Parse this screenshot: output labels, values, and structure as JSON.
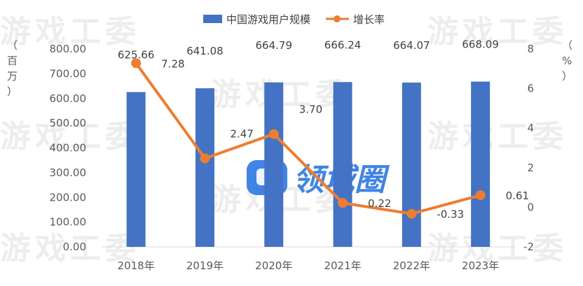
{
  "chart_data": {
    "type": "bar",
    "categories": [
      "2018年",
      "2019年",
      "2020年",
      "2021年",
      "2022年",
      "2023年"
    ],
    "series": [
      {
        "name": "中国游戏用户规模",
        "type": "bar",
        "axis": "left",
        "values": [
          625.66,
          641.08,
          664.79,
          666.24,
          664.07,
          668.09
        ],
        "color": "#4472c4",
        "labels": [
          "625.66",
          "641.08",
          "664.79",
          "666.24",
          "664.07",
          "668.09"
        ]
      },
      {
        "name": "增长率",
        "type": "line",
        "axis": "right",
        "values": [
          7.28,
          2.47,
          3.7,
          0.22,
          -0.33,
          0.61
        ],
        "color": "#ed7d31",
        "labels": [
          "7.28",
          "2.47",
          "3.70",
          "0.22",
          "-0.33",
          "0.61"
        ]
      }
    ],
    "y_left": {
      "title": "（百万）",
      "min": 0,
      "max": 800,
      "step": 100,
      "tick_labels": [
        "0.00",
        "100.00",
        "200.00",
        "300.00",
        "400.00",
        "500.00",
        "600.00",
        "700.00",
        "800.00"
      ]
    },
    "y_right": {
      "title": "（%）",
      "min": -2,
      "max": 8,
      "step": 2,
      "tick_labels": [
        "-2",
        "0",
        "2",
        "4",
        "6",
        "8"
      ]
    },
    "legend_position": "top-center",
    "grid": false
  },
  "watermarks": {
    "text": "游戏工委",
    "logo": "领域圈"
  }
}
